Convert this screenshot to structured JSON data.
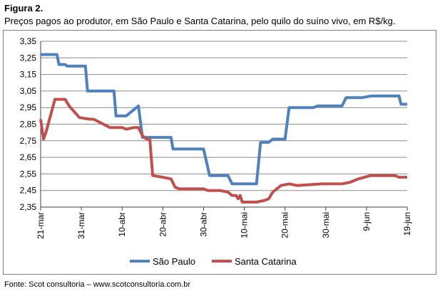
{
  "figure_label": "Figura 2.",
  "caption": "Preços pagos ao produtor, em São Paulo e Santa Catarina, pelo quilo do suíno vivo, em R$/kg.",
  "source": "Fonte: Scot consultoria – www.scotconsultoria.com.br",
  "colors": {
    "sao_paulo": "#4f81bd",
    "santa_catarina": "#c0504d",
    "grid": "#8c8c8c",
    "axis": "#404040"
  },
  "chart_data": {
    "type": "line",
    "title": "",
    "xlabel": "",
    "ylabel": "",
    "ylim": [
      2.35,
      3.35
    ],
    "y_ticks": [
      "2,35",
      "2,45",
      "2,55",
      "2,65",
      "2,75",
      "2,85",
      "2,95",
      "3,05",
      "3,15",
      "3,25",
      "3,35"
    ],
    "x_range": [
      0,
      90
    ],
    "x_ticks": [
      {
        "label": "21-mar",
        "x": 0
      },
      {
        "label": "31-mar",
        "x": 10
      },
      {
        "label": "10-abr",
        "x": 20
      },
      {
        "label": "20-abr",
        "x": 30
      },
      {
        "label": "30-abr",
        "x": 40
      },
      {
        "label": "10-mai",
        "x": 50
      },
      {
        "label": "20-mai",
        "x": 60
      },
      {
        "label": "30-mai",
        "x": 70
      },
      {
        "label": "9-jun",
        "x": 80
      },
      {
        "label": "19-jun",
        "x": 90
      }
    ],
    "grid": true,
    "legend_position": "bottom",
    "series": [
      {
        "name": "São Paulo",
        "points": [
          [
            0,
            3.27
          ],
          [
            4,
            3.27
          ],
          [
            4.5,
            3.21
          ],
          [
            6,
            3.21
          ],
          [
            6.5,
            3.2
          ],
          [
            11,
            3.2
          ],
          [
            11.5,
            3.05
          ],
          [
            18,
            3.05
          ],
          [
            18.5,
            2.9
          ],
          [
            21,
            2.9
          ],
          [
            24,
            2.96
          ],
          [
            25,
            2.77
          ],
          [
            29,
            2.77
          ],
          [
            30,
            2.77
          ],
          [
            32,
            2.77
          ],
          [
            32.5,
            2.7
          ],
          [
            40,
            2.7
          ],
          [
            41.5,
            2.54
          ],
          [
            46,
            2.54
          ],
          [
            47,
            2.49
          ],
          [
            52,
            2.49
          ],
          [
            53,
            2.49
          ],
          [
            54,
            2.74
          ],
          [
            56,
            2.74
          ],
          [
            57,
            2.76
          ],
          [
            60,
            2.76
          ],
          [
            61,
            2.95
          ],
          [
            67,
            2.95
          ],
          [
            68,
            2.96
          ],
          [
            74,
            2.96
          ],
          [
            75,
            3.01
          ],
          [
            79,
            3.01
          ],
          [
            81,
            3.02
          ],
          [
            88,
            3.02
          ],
          [
            88.5,
            2.97
          ],
          [
            90,
            2.97
          ]
        ]
      },
      {
        "name": "Santa Catarina",
        "points": [
          [
            0,
            2.88
          ],
          [
            0.7,
            2.76
          ],
          [
            1.3,
            2.8
          ],
          [
            3.5,
            3.0
          ],
          [
            6,
            3.0
          ],
          [
            7,
            2.96
          ],
          [
            9.5,
            2.89
          ],
          [
            12,
            2.88
          ],
          [
            13,
            2.88
          ],
          [
            17,
            2.83
          ],
          [
            20,
            2.83
          ],
          [
            21,
            2.82
          ],
          [
            23,
            2.83
          ],
          [
            24,
            2.83
          ],
          [
            25,
            2.78
          ],
          [
            26,
            2.76
          ],
          [
            26.8,
            2.76
          ],
          [
            27.5,
            2.54
          ],
          [
            30,
            2.53
          ],
          [
            32,
            2.52
          ],
          [
            33,
            2.47
          ],
          [
            34,
            2.46
          ],
          [
            37,
            2.46
          ],
          [
            40,
            2.46
          ],
          [
            41,
            2.45
          ],
          [
            44,
            2.45
          ],
          [
            46,
            2.44
          ],
          [
            47,
            2.42
          ],
          [
            48,
            2.42
          ],
          [
            48.5,
            2.4
          ],
          [
            49,
            2.42
          ],
          [
            49.5,
            2.38
          ],
          [
            51,
            2.38
          ],
          [
            53,
            2.38
          ],
          [
            55,
            2.39
          ],
          [
            56,
            2.4
          ],
          [
            57,
            2.44
          ],
          [
            59,
            2.48
          ],
          [
            61,
            2.49
          ],
          [
            63,
            2.48
          ],
          [
            69,
            2.49
          ],
          [
            74,
            2.49
          ],
          [
            76,
            2.5
          ],
          [
            78,
            2.52
          ],
          [
            81,
            2.54
          ],
          [
            83,
            2.54
          ],
          [
            87,
            2.54
          ],
          [
            88,
            2.53
          ],
          [
            90,
            2.53
          ]
        ]
      }
    ]
  }
}
